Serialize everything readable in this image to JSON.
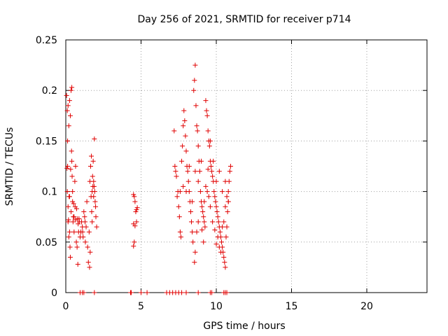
{
  "chart_data": {
    "type": "scatter",
    "title": "Day 256 of 2021, SRMTID for receiver p714",
    "xlabel": "GPS time / hours",
    "ylabel": "SRMTID / TECUs",
    "xlim": [
      0,
      24
    ],
    "ylim": [
      0,
      0.25
    ],
    "grid": true,
    "marker": "+",
    "color": "#e00000",
    "x_ticks": [
      0,
      5,
      10,
      15,
      20
    ],
    "x_tick_labels": [
      "0",
      "5",
      "10",
      "15",
      "20"
    ],
    "y_ticks": [
      0,
      0.05,
      0.1,
      0.15,
      0.2,
      0.25
    ],
    "y_tick_labels": [
      "0",
      "0.05",
      "0.1",
      "0.15",
      "0.2",
      "0.25"
    ],
    "series": [
      {
        "name": "SRMTID",
        "points": [
          [
            0.05,
            0.195
          ],
          [
            0.1,
            0.18
          ],
          [
            0.12,
            0.15
          ],
          [
            0.15,
            0.185
          ],
          [
            0.2,
            0.165
          ],
          [
            0.25,
            0.19
          ],
          [
            0.3,
            0.175
          ],
          [
            0.35,
            0.2
          ],
          [
            0.4,
            0.203
          ],
          [
            0.08,
            0.123
          ],
          [
            0.1,
            0.1
          ],
          [
            0.12,
            0.125
          ],
          [
            0.15,
            0.085
          ],
          [
            0.18,
            0.072
          ],
          [
            0.2,
            0.055
          ],
          [
            0.22,
            0.095
          ],
          [
            0.25,
            0.06
          ],
          [
            0.28,
            0.045
          ],
          [
            0.3,
            0.035
          ],
          [
            0.32,
            0.122
          ],
          [
            0.35,
            0.08
          ],
          [
            0.38,
            0.14
          ],
          [
            0.4,
            0.13
          ],
          [
            0.42,
            0.115
          ],
          [
            0.45,
            0.09
          ],
          [
            0.48,
            0.07
          ],
          [
            0.5,
            0.075
          ],
          [
            0.52,
            0.088
          ],
          [
            0.55,
            0.06
          ],
          [
            0.6,
            0.11
          ],
          [
            0.62,
            0.085
          ],
          [
            0.65,
            0.072
          ],
          [
            0.7,
            0.05
          ],
          [
            0.75,
            0.045
          ],
          [
            0.8,
            0.028
          ],
          [
            0.85,
            0.06
          ],
          [
            0.88,
            0.073
          ],
          [
            0.9,
            0.07
          ],
          [
            0.95,
            0.055
          ],
          [
            0.15,
            0.07
          ],
          [
            0.25,
            0.095
          ],
          [
            0.45,
            0.1
          ],
          [
            0.55,
            0.075
          ],
          [
            0.65,
            0.125
          ],
          [
            0.72,
            0.083
          ],
          [
            0.78,
            0.073
          ],
          [
            0.82,
            0.068
          ],
          [
            1.0,
            0.06
          ],
          [
            1.05,
            0.07
          ],
          [
            1.1,
            0.065
          ],
          [
            1.15,
            0.055
          ],
          [
            1.2,
            0.08
          ],
          [
            1.25,
            0.075
          ],
          [
            1.3,
            0.05
          ],
          [
            1.35,
            0.065
          ],
          [
            1.4,
            0.09
          ],
          [
            1.45,
            0.045
          ],
          [
            1.5,
            0.03
          ],
          [
            1.55,
            0.06
          ],
          [
            1.6,
            0.11
          ],
          [
            1.65,
            0.125
          ],
          [
            1.7,
            0.135
          ],
          [
            1.75,
            0.1
          ],
          [
            1.8,
            0.105
          ],
          [
            1.85,
            0.095
          ],
          [
            1.9,
            0.152
          ],
          [
            1.95,
            0.09
          ],
          [
            2.0,
            0.075
          ],
          [
            1.72,
            0.08
          ],
          [
            1.78,
            0.115
          ],
          [
            1.82,
            0.13
          ],
          [
            1.88,
            0.105
          ],
          [
            1.92,
            0.1
          ],
          [
            1.98,
            0.085
          ],
          [
            2.05,
            0.065
          ],
          [
            1.62,
            0.04
          ],
          [
            1.58,
            0.025
          ],
          [
            1.68,
            0.095
          ],
          [
            1.75,
            0.07
          ],
          [
            1.85,
            0.11
          ],
          [
            1.12,
            0.06
          ],
          [
            1.28,
            0.07
          ],
          [
            4.5,
            0.097
          ],
          [
            4.55,
            0.095
          ],
          [
            4.6,
            0.09
          ],
          [
            4.65,
            0.08
          ],
          [
            4.7,
            0.082
          ],
          [
            4.75,
            0.084
          ],
          [
            4.5,
            0.068
          ],
          [
            4.6,
            0.066
          ],
          [
            4.55,
            0.05
          ],
          [
            4.5,
            0.046
          ],
          [
            4.7,
            0.07
          ],
          [
            7.2,
            0.16
          ],
          [
            7.25,
            0.125
          ],
          [
            7.3,
            0.12
          ],
          [
            7.35,
            0.115
          ],
          [
            7.4,
            0.095
          ],
          [
            7.45,
            0.1
          ],
          [
            7.5,
            0.085
          ],
          [
            7.55,
            0.075
          ],
          [
            7.6,
            0.06
          ],
          [
            7.65,
            0.055
          ],
          [
            7.7,
            0.13
          ],
          [
            7.75,
            0.145
          ],
          [
            7.8,
            0.165
          ],
          [
            7.85,
            0.18
          ],
          [
            7.9,
            0.17
          ],
          [
            7.95,
            0.155
          ],
          [
            8.0,
            0.14
          ],
          [
            8.05,
            0.125
          ],
          [
            8.1,
            0.12
          ],
          [
            8.15,
            0.11
          ],
          [
            8.2,
            0.1
          ],
          [
            8.25,
            0.09
          ],
          [
            8.3,
            0.08
          ],
          [
            8.35,
            0.07
          ],
          [
            8.4,
            0.06
          ],
          [
            8.45,
            0.05
          ],
          [
            8.5,
            0.2
          ],
          [
            8.55,
            0.21
          ],
          [
            8.6,
            0.225
          ],
          [
            8.65,
            0.185
          ],
          [
            8.7,
            0.165
          ],
          [
            8.75,
            0.16
          ],
          [
            8.8,
            0.145
          ],
          [
            8.85,
            0.13
          ],
          [
            8.9,
            0.12
          ],
          [
            8.95,
            0.1
          ],
          [
            9.0,
            0.09
          ],
          [
            9.05,
            0.085
          ],
          [
            9.1,
            0.08
          ],
          [
            9.15,
            0.075
          ],
          [
            9.2,
            0.07
          ],
          [
            9.25,
            0.065
          ],
          [
            9.3,
            0.19
          ],
          [
            9.35,
            0.18
          ],
          [
            9.4,
            0.175
          ],
          [
            9.45,
            0.16
          ],
          [
            9.5,
            0.15
          ],
          [
            9.55,
            0.145
          ],
          [
            9.6,
            0.13
          ],
          [
            9.65,
            0.125
          ],
          [
            9.7,
            0.12
          ],
          [
            9.75,
            0.115
          ],
          [
            9.8,
            0.11
          ],
          [
            9.85,
            0.1
          ],
          [
            9.9,
            0.095
          ],
          [
            9.95,
            0.09
          ],
          [
            10.0,
            0.085
          ],
          [
            10.05,
            0.08
          ],
          [
            10.1,
            0.075
          ],
          [
            10.15,
            0.07
          ],
          [
            10.2,
            0.065
          ],
          [
            10.25,
            0.06
          ],
          [
            10.3,
            0.055
          ],
          [
            10.35,
            0.05
          ],
          [
            10.4,
            0.045
          ],
          [
            10.45,
            0.04
          ],
          [
            10.5,
            0.035
          ],
          [
            10.55,
            0.03
          ],
          [
            10.6,
            0.025
          ],
          [
            10.65,
            0.055
          ],
          [
            10.7,
            0.065
          ],
          [
            10.75,
            0.08
          ],
          [
            10.8,
            0.1
          ],
          [
            10.85,
            0.11
          ],
          [
            10.9,
            0.12
          ],
          [
            10.95,
            0.125
          ],
          [
            8.55,
            0.03
          ],
          [
            8.6,
            0.04
          ],
          [
            8.7,
            0.06
          ],
          [
            8.8,
            0.07
          ],
          [
            9.05,
            0.062
          ],
          [
            9.15,
            0.05
          ],
          [
            9.3,
            0.105
          ],
          [
            9.45,
            0.122
          ],
          [
            9.5,
            0.095
          ],
          [
            9.6,
            0.085
          ],
          [
            9.75,
            0.07
          ],
          [
            9.9,
            0.062
          ],
          [
            10.0,
            0.048
          ],
          [
            10.1,
            0.055
          ],
          [
            10.2,
            0.045
          ],
          [
            10.3,
            0.04
          ],
          [
            10.4,
            0.065
          ],
          [
            10.5,
            0.07
          ],
          [
            10.6,
            0.085
          ],
          [
            10.7,
            0.095
          ],
          [
            10.8,
            0.09
          ],
          [
            7.6,
            0.1
          ],
          [
            7.8,
            0.105
          ],
          [
            8.0,
            0.1
          ],
          [
            8.2,
            0.125
          ],
          [
            8.4,
            0.09
          ],
          [
            8.6,
            0.12
          ],
          [
            8.8,
            0.11
          ],
          [
            9.0,
            0.13
          ],
          [
            9.2,
            0.09
          ],
          [
            9.4,
            0.1
          ],
          [
            9.6,
            0.15
          ],
          [
            9.8,
            0.13
          ],
          [
            10.0,
            0.11
          ],
          [
            10.2,
            0.12
          ],
          [
            10.4,
            0.1
          ],
          [
            10.6,
            0.11
          ],
          [
            10.8,
            0.09
          ],
          [
            0.95,
            0.0
          ],
          [
            1.1,
            0.0
          ],
          [
            1.2,
            0.0
          ],
          [
            1.9,
            0.0
          ],
          [
            4.3,
            0.0
          ],
          [
            4.35,
            0.0
          ],
          [
            5.0,
            0.0
          ],
          [
            5.4,
            0.0
          ],
          [
            6.7,
            0.0
          ],
          [
            6.9,
            0.0
          ],
          [
            7.1,
            0.0
          ],
          [
            7.3,
            0.0
          ],
          [
            7.5,
            0.0
          ],
          [
            7.7,
            0.0
          ],
          [
            8.0,
            0.0
          ],
          [
            8.8,
            0.0
          ],
          [
            9.6,
            0.0
          ],
          [
            9.7,
            0.0
          ],
          [
            10.5,
            0.0
          ],
          [
            10.6,
            0.0
          ],
          [
            10.7,
            0.0
          ]
        ]
      }
    ]
  }
}
